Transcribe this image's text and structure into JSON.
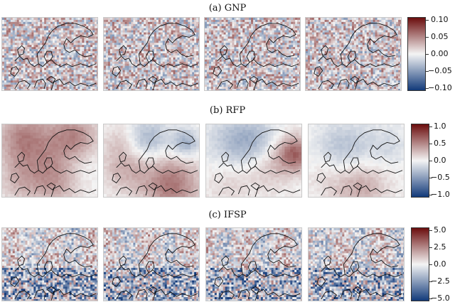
{
  "panels": [
    {
      "title": "(a) GNP",
      "colorbar_ticks": [
        "0.10",
        "0.05",
        "0.00",
        "−0.05",
        "−0.10"
      ],
      "style": "gnp",
      "maps": 4
    },
    {
      "title": "(b) RFP",
      "colorbar_ticks": [
        "1.0",
        "0.5",
        "0.0",
        "−0.5",
        "−1.0"
      ],
      "style": "rfp",
      "maps": 4
    },
    {
      "title": "(c) IFSP",
      "colorbar_ticks": [
        "5.0",
        "2.5",
        "0.0",
        "−2.5",
        "−5.0"
      ],
      "style": "ifsp",
      "maps": 4
    }
  ],
  "colors": {
    "positive": "#6b0d0d",
    "mid": "#f4f4f4",
    "negative": "#123a7a"
  }
}
